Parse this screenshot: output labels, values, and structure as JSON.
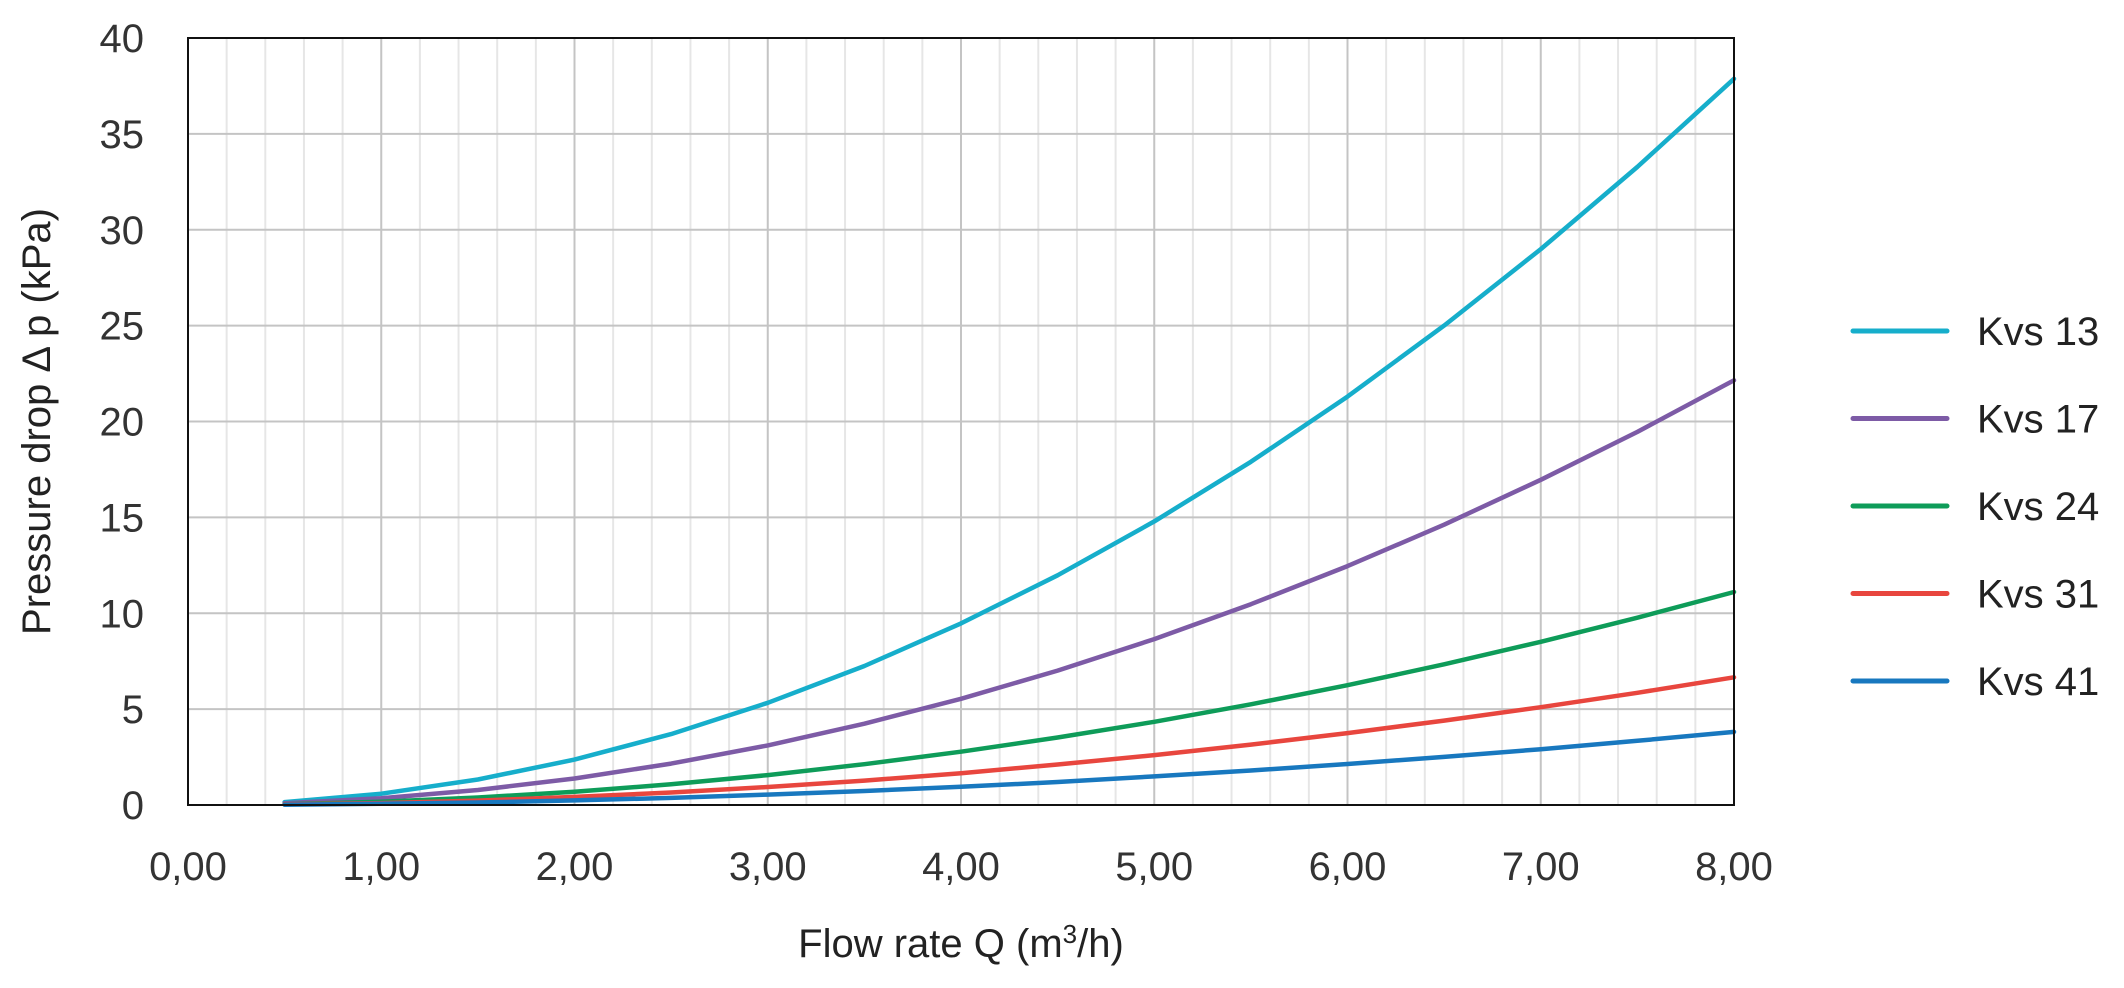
{
  "chart_data": {
    "type": "line",
    "title": "",
    "xlabel_prefix": "Flow rate Q (m",
    "xlabel_superscript": "3",
    "xlabel_suffix": "/h)",
    "ylabel": "Pressure drop Δ p (kPa)",
    "xlim": [
      0,
      8
    ],
    "ylim": [
      0,
      40
    ],
    "x_ticks": [
      0,
      1,
      2,
      3,
      4,
      5,
      6,
      7,
      8
    ],
    "x_tick_labels": [
      "0,00",
      "1,00",
      "2,00",
      "3,00",
      "4,00",
      "5,00",
      "6,00",
      "7,00",
      "8,00"
    ],
    "y_ticks": [
      0,
      5,
      10,
      15,
      20,
      25,
      30,
      35,
      40
    ],
    "y_tick_labels": [
      "0",
      "5",
      "10",
      "15",
      "20",
      "25",
      "30",
      "35",
      "40"
    ],
    "minor_x_step": 0.2,
    "grid": true,
    "legend_position": "right",
    "x": [
      0.5,
      1.0,
      1.5,
      2.0,
      2.5,
      3.0,
      3.5,
      4.0,
      4.5,
      5.0,
      5.5,
      6.0,
      6.5,
      7.0,
      7.5,
      8.0
    ],
    "series": [
      {
        "name": "Kvs 13",
        "color": "#16AECB",
        "values": [
          0.15,
          0.59,
          1.33,
          2.37,
          3.7,
          5.33,
          7.25,
          9.47,
          11.98,
          14.79,
          17.9,
          21.3,
          25.0,
          28.99,
          33.28,
          37.87
        ]
      },
      {
        "name": "Kvs 17",
        "color": "#7D5BA6",
        "values": [
          0.09,
          0.35,
          0.78,
          1.38,
          2.16,
          3.11,
          4.24,
          5.54,
          7.01,
          8.65,
          10.47,
          12.46,
          14.62,
          16.96,
          19.46,
          22.15
        ]
      },
      {
        "name": "Kvs 24",
        "color": "#0E9C59",
        "values": [
          0.04,
          0.17,
          0.39,
          0.69,
          1.08,
          1.56,
          2.13,
          2.78,
          3.52,
          4.34,
          5.25,
          6.25,
          7.34,
          8.51,
          9.77,
          11.11
        ]
      },
      {
        "name": "Kvs 31",
        "color": "#E8463E",
        "values": [
          0.03,
          0.1,
          0.23,
          0.42,
          0.65,
          0.94,
          1.27,
          1.66,
          2.11,
          2.6,
          3.15,
          3.75,
          4.4,
          5.1,
          5.85,
          6.66
        ]
      },
      {
        "name": "Kvs 41",
        "color": "#1878BF",
        "values": [
          0.01,
          0.06,
          0.13,
          0.24,
          0.37,
          0.54,
          0.73,
          0.95,
          1.2,
          1.49,
          1.8,
          2.14,
          2.51,
          2.91,
          3.35,
          3.81
        ]
      }
    ]
  }
}
